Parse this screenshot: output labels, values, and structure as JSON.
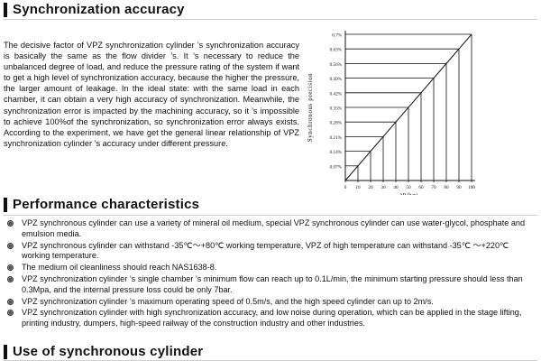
{
  "sections": {
    "sync_title": "Synchronization accuracy",
    "perf_title": "Performance characteristics",
    "use_title": "Use of synchronous cylinder"
  },
  "sync_paragraph": "The decisive factor of VPZ synchronization cylinder ’s synchronization accuracy is basically the same as the flow divider ’s. It ’s necessary to reduce the unbalanced degree of load, and reduce the pressure rating of the system if want to get a high level of synchronization accuracy, because the higher the pressure, the larger amount of leakage. In the ideal state: with the same load in each chamber, it can obtain a very high accuracy of synchronization. Meanwhile, the synchronization error is impacted by the machining accuracy, so it ’s impossible to achieve 100%of the synchronization, so synchronization error always exists. According to the experiment, we have get the general linear relationship of VPZ synchronization cylinder ’s accuracy under different pressure.",
  "chart_data": {
    "type": "line",
    "xlabel": "ΔP (bar)",
    "ylabel": "Synchronous precision",
    "x_ticks": [
      "0",
      "10",
      "20",
      "30",
      "40",
      "50",
      "60",
      "70",
      "80",
      "90",
      "100"
    ],
    "y_ticks": [
      "0.07%",
      "0.14%",
      "0.21%",
      "0.28%",
      "0.35%",
      "0.42%",
      "0.49%",
      "0.56%",
      "0.63%",
      "0.7%"
    ],
    "xlim": [
      0,
      100
    ],
    "ylim": [
      0,
      0.7
    ],
    "series": [
      {
        "x": [
          0,
          100
        ],
        "y": [
          0,
          0.7
        ]
      }
    ],
    "grid": "horizontal lines at each tick with drop lines to x axis"
  },
  "performance": [
    "VPZ synchronous cylinder can use a variety of mineral oil medium, special VPZ synchronous cylinder can use water-glycol, phosphate and emulsion media.",
    "VPZ synchronous cylinder can withstand -35℃～+80℃ working temperature, VPZ of high temperature can withstand -35℃ ～+220℃ working temperature.",
    "The medium oil cleanliness should reach NAS1638-8.",
    "VPZ synchronization cylinder ’s single chamber ’s minimum flow can reach up to 0.1L/min, the minimum starting pressure should less than 0.3Mpa, and the internal pressure loss could be only 7bar.",
    "VPZ synchronization cylinder ’s maximum operating speed of 0.5m/s, and the high speed cylinder can up to 2m/s.",
    "VPZ synchronization cylinder with high synchronization accuracy, and low noise during operation, which can be applied in the stage lifting, printing industry, dumpers, high-speed railway of the construction industry and other industries."
  ]
}
